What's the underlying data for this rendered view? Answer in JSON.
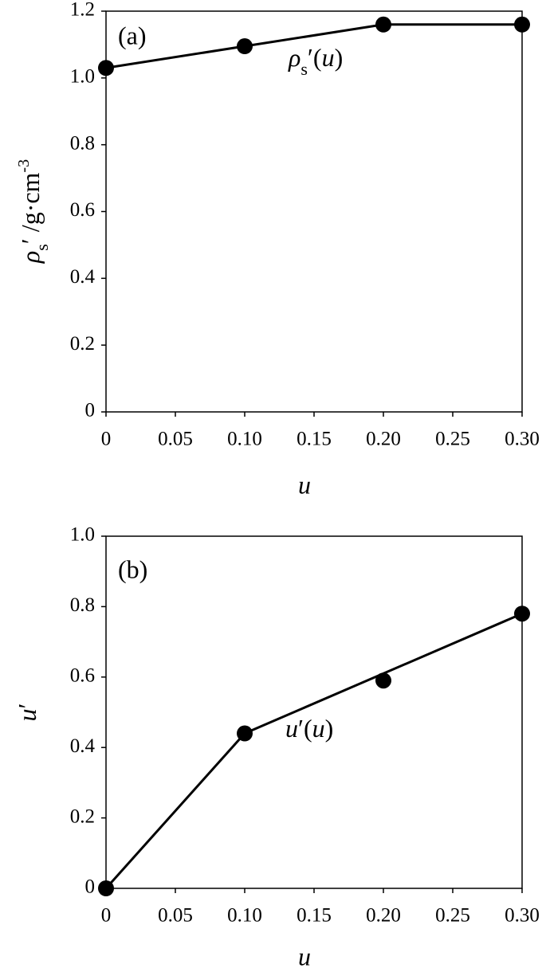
{
  "chart_data": [
    {
      "type": "line",
      "panel_label": "(a)",
      "xlabel": "u",
      "ylabel": [
        "ρ",
        "s",
        "′ /g·cm",
        "-3"
      ],
      "annotation": [
        "ρ",
        "s",
        "′(",
        "u",
        ")"
      ],
      "xlim": [
        0,
        0.3
      ],
      "xticks": [
        0,
        0.05,
        {
          "value": 0.1,
          "label": "0.10"
        },
        0.15,
        {
          "value": 0.2,
          "label": "0.20"
        },
        0.25,
        {
          "value": 0.3,
          "label": "0.30"
        }
      ],
      "ylim": [
        0,
        1.2
      ],
      "yticks": [
        0,
        0.2,
        0.4,
        0.6,
        0.8,
        {
          "value": 1.0,
          "label": "1.0"
        },
        1.2
      ],
      "grid": false,
      "series": [
        {
          "color": "#000000",
          "marker": true,
          "line": true,
          "x": [
            0,
            0.1,
            0.2,
            0.3
          ],
          "values": [
            1.03,
            1.095,
            1.16,
            1.16
          ]
        }
      ]
    },
    {
      "type": "line",
      "panel_label": "(b)",
      "xlabel": "u",
      "ylabel": [
        "u",
        "′"
      ],
      "annotation": [
        "u",
        "′(",
        "u",
        ")"
      ],
      "xlim": [
        0,
        0.3
      ],
      "xticks": [
        0,
        0.05,
        {
          "value": 0.1,
          "label": "0.10"
        },
        0.15,
        {
          "value": 0.2,
          "label": "0.20"
        },
        0.25,
        {
          "value": 0.3,
          "label": "0.30"
        }
      ],
      "ylim": [
        0,
        1.0
      ],
      "yticks": [
        0,
        0.2,
        0.4,
        0.6,
        0.8,
        {
          "value": 1.0,
          "label": "1.0"
        }
      ],
      "grid": false,
      "series": [
        {
          "color": "#000000",
          "marker": true,
          "line": false,
          "x": [
            0,
            0.1,
            0.2,
            0.3
          ],
          "values": [
            0,
            0.44,
            0.59,
            0.78
          ]
        },
        {
          "color": "#000000",
          "marker": false,
          "line": true,
          "x": [
            0,
            0.1,
            0.3
          ],
          "values": [
            0,
            0.44,
            0.78
          ]
        }
      ]
    }
  ]
}
